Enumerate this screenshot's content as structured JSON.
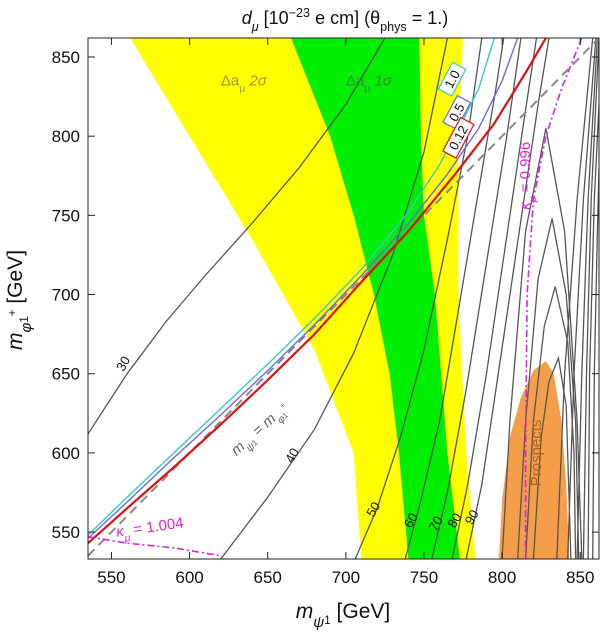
{
  "chart_data": {
    "type": "contour",
    "title_parts": [
      "d",
      "μ",
      " [10",
      "−23",
      " e cm] (θ",
      "phys",
      " = 1.)"
    ],
    "xlabel_parts": [
      "m",
      "ψ",
      "1",
      " [GeV]"
    ],
    "ylabel_parts": [
      "m",
      "φ",
      "1",
      "+",
      " [GeV]"
    ],
    "xlim": [
      535,
      862
    ],
    "ylim": [
      533,
      862
    ],
    "x_ticks": [
      550,
      600,
      650,
      700,
      750,
      800,
      850
    ],
    "y_ticks": [
      550,
      600,
      650,
      700,
      750,
      800,
      850
    ],
    "bands": [
      {
        "name": "yellow",
        "color": "#ffff00",
        "left_edge": [
          [
            562,
            862
          ],
          [
            600,
            800
          ],
          [
            640,
            735
          ],
          [
            680,
            665
          ],
          [
            705,
            600
          ],
          [
            710,
            533
          ]
        ],
        "right_edge": [
          [
            775,
            862
          ],
          [
            772,
            800
          ],
          [
            772,
            700
          ],
          [
            777,
            600
          ],
          [
            783,
            533
          ]
        ]
      },
      {
        "name": "green",
        "color": "#00ee00",
        "left_edge": [
          [
            665,
            862
          ],
          [
            690,
            800
          ],
          [
            705,
            750
          ],
          [
            718,
            700
          ],
          [
            728,
            650
          ],
          [
            734,
            600
          ],
          [
            740,
            533
          ]
        ],
        "right_edge": [
          [
            747,
            862
          ],
          [
            748,
            800
          ],
          [
            750,
            750
          ],
          [
            757,
            700
          ],
          [
            765,
            600
          ],
          [
            773,
            533
          ]
        ]
      }
    ],
    "band_labels": [
      {
        "text": "Δa",
        "sub": "μ",
        "tail": " 2σ",
        "color": "#9a9a2a",
        "x": 620,
        "y": 832
      },
      {
        "text": "Δa",
        "sub": "μ",
        "tail": " 1σ",
        "color": "#3a8a3a",
        "x": 700,
        "y": 832
      }
    ],
    "prospects": {
      "label": "Prospects",
      "color": "#f59e4a",
      "outline": [
        [
          798,
          533
        ],
        [
          800,
          570
        ],
        [
          805,
          610
        ],
        [
          812,
          635
        ],
        [
          820,
          652
        ],
        [
          828,
          658
        ],
        [
          833,
          650
        ],
        [
          838,
          620
        ],
        [
          841,
          580
        ],
        [
          843,
          533
        ]
      ]
    },
    "contours": [
      {
        "label": "30",
        "label_at": [
          560,
          655
        ],
        "points": [
          [
            535,
            612
          ],
          [
            560,
            650
          ],
          [
            585,
            683
          ],
          [
            610,
            712
          ],
          [
            640,
            745
          ],
          [
            670,
            780
          ],
          [
            700,
            820
          ],
          [
            725,
            862
          ]
        ]
      },
      {
        "label": "40",
        "label_at": [
          668,
          597
        ],
        "points": [
          [
            620,
            533
          ],
          [
            650,
            572
          ],
          [
            680,
            615
          ],
          [
            705,
            663
          ],
          [
            730,
            725
          ],
          [
            750,
            790
          ],
          [
            765,
            862
          ]
        ]
      },
      {
        "label": "50",
        "label_at": [
          720,
          563
        ],
        "points": [
          [
            706,
            533
          ],
          [
            720,
            565
          ],
          [
            735,
            610
          ],
          [
            750,
            665
          ],
          [
            765,
            735
          ],
          [
            778,
            800
          ],
          [
            787,
            862
          ]
        ]
      },
      {
        "label": "60",
        "label_at": [
          744,
          556
        ],
        "points": [
          [
            738,
            533
          ],
          [
            748,
            570
          ],
          [
            760,
            620
          ],
          [
            772,
            690
          ],
          [
            784,
            760
          ],
          [
            796,
            830
          ],
          [
            801,
            862
          ]
        ]
      },
      {
        "label": "70",
        "label_at": [
          760,
          554
        ],
        "points": [
          [
            755,
            533
          ],
          [
            765,
            575
          ],
          [
            777,
            640
          ],
          [
            790,
            720
          ],
          [
            803,
            800
          ],
          [
            812,
            862
          ]
        ]
      },
      {
        "label": "80",
        "label_at": [
          772,
          556
        ],
        "points": [
          [
            768,
            533
          ],
          [
            778,
            580
          ],
          [
            790,
            650
          ],
          [
            802,
            730
          ],
          [
            814,
            810
          ],
          [
            822,
            862
          ]
        ]
      },
      {
        "label": "90",
        "label_at": [
          783,
          558
        ],
        "points": [
          [
            777,
            533
          ],
          [
            787,
            580
          ],
          [
            799,
            660
          ],
          [
            811,
            740
          ],
          [
            823,
            820
          ],
          [
            830,
            862
          ]
        ]
      },
      {
        "label": "",
        "points": [
          [
            800,
            533
          ],
          [
            805,
            620
          ],
          [
            815,
            740
          ],
          [
            828,
            805
          ],
          [
            840,
            740
          ],
          [
            848,
            620
          ],
          [
            851,
            533
          ]
        ]
      },
      {
        "label": "",
        "points": [
          [
            810,
            533
          ],
          [
            815,
            620
          ],
          [
            823,
            710
          ],
          [
            832,
            748
          ],
          [
            841,
            700
          ],
          [
            847,
            620
          ],
          [
            849,
            533
          ]
        ]
      },
      {
        "label": "",
        "points": [
          [
            815,
            533
          ],
          [
            820,
            620
          ],
          [
            827,
            680
          ],
          [
            834,
            705
          ],
          [
            842,
            670
          ],
          [
            846,
            600
          ],
          [
            847,
            533
          ]
        ]
      },
      {
        "label": "",
        "points": [
          [
            820,
            533
          ],
          [
            825,
            610
          ],
          [
            830,
            645
          ],
          [
            836,
            660
          ],
          [
            841,
            630
          ],
          [
            844,
            533
          ]
        ]
      },
      {
        "label": "",
        "points": [
          [
            835,
            533
          ],
          [
            840,
            650
          ],
          [
            848,
            760
          ],
          [
            858,
            862
          ]
        ]
      },
      {
        "label": "",
        "points": [
          [
            842,
            533
          ],
          [
            846,
            650
          ],
          [
            852,
            760
          ],
          [
            860,
            862
          ]
        ]
      },
      {
        "label": "",
        "points": [
          [
            848,
            533
          ],
          [
            851,
            650
          ],
          [
            855,
            760
          ],
          [
            861,
            862
          ]
        ]
      },
      {
        "label": "",
        "points": [
          [
            852,
            533
          ],
          [
            854,
            650
          ],
          [
            857,
            760
          ],
          [
            862,
            862
          ]
        ]
      },
      {
        "label": "",
        "points": [
          [
            855,
            533
          ],
          [
            856,
            650
          ],
          [
            859,
            760
          ],
          [
            862,
            820
          ]
        ]
      },
      {
        "label": "",
        "points": [
          [
            858,
            533
          ],
          [
            859,
            650
          ],
          [
            861,
            740
          ],
          [
            862,
            780
          ]
        ]
      }
    ],
    "diagonal": {
      "label_parts": [
        "m",
        "ψ",
        "1",
        " = m",
        "φ",
        "1",
        "+"
      ],
      "label_at": [
        630,
        598
      ],
      "from": [
        535,
        535
      ],
      "to": [
        862,
        862
      ]
    },
    "limit_curves": [
      {
        "label": "1.0",
        "color": "#38c8c8",
        "label_at": [
          770,
          835
        ],
        "points": [
          [
            535,
            548
          ],
          [
            560,
            572
          ],
          [
            590,
            600
          ],
          [
            620,
            628
          ],
          [
            650,
            656
          ],
          [
            680,
            685
          ],
          [
            710,
            716
          ],
          [
            740,
            752
          ],
          [
            760,
            782
          ],
          [
            775,
            810
          ],
          [
            785,
            830
          ],
          [
            795,
            862
          ]
        ]
      },
      {
        "label": "0.5",
        "color": "#6a6ae0",
        "label_at": [
          773,
          814
        ],
        "points": [
          [
            535,
            546
          ],
          [
            560,
            569
          ],
          [
            590,
            597
          ],
          [
            620,
            624
          ],
          [
            650,
            652
          ],
          [
            680,
            681
          ],
          [
            710,
            712
          ],
          [
            740,
            745
          ],
          [
            765,
            776
          ],
          [
            785,
            805
          ],
          [
            800,
            835
          ],
          [
            810,
            862
          ]
        ]
      },
      {
        "label": "0.12",
        "color": "#e01010",
        "label_at": [
          774,
          798
        ],
        "points": [
          [
            535,
            543
          ],
          [
            560,
            565
          ],
          [
            590,
            591
          ],
          [
            620,
            618
          ],
          [
            650,
            646
          ],
          [
            680,
            675
          ],
          [
            710,
            708
          ],
          [
            740,
            740
          ],
          [
            770,
            776
          ],
          [
            795,
            808
          ],
          [
            815,
            840
          ],
          [
            828,
            862
          ]
        ]
      }
    ],
    "kappa_lines": [
      {
        "text": "κ",
        "sub": "μ",
        "value": " = 0.996",
        "color": "#dd22dd",
        "label_at": [
          818,
          775
        ],
        "points": [
          [
            851,
            862
          ],
          [
            838,
            830
          ],
          [
            828,
            800
          ],
          [
            820,
            760
          ],
          [
            816,
            700
          ],
          [
            815,
            600
          ],
          [
            815,
            533
          ]
        ]
      },
      {
        "text": "κ",
        "sub": "μ",
        "value": " = 1.004",
        "color": "#dd22dd",
        "label_at": [
          575,
          550
        ],
        "points": [
          [
            535,
            547
          ],
          [
            560,
            543
          ],
          [
            590,
            540
          ],
          [
            620,
            535
          ]
        ]
      }
    ]
  }
}
